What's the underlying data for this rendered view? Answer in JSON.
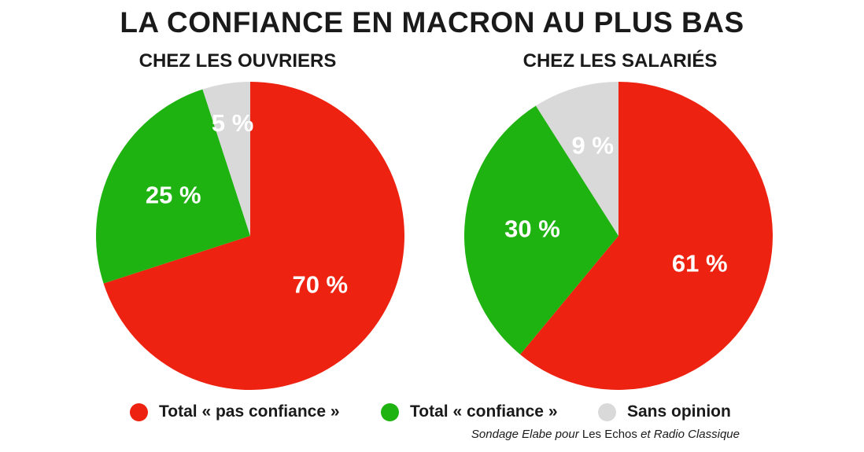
{
  "title": "LA CONFIANCE EN MACRON AU PLUS BAS",
  "source": {
    "part1": "Sondage Elabe pour",
    "part2": " Les Echos ",
    "part3": "et",
    "part4": " Radio Classique"
  },
  "colors": {
    "pas_confiance": "#ee2211",
    "confiance": "#1fb312",
    "sans_opinion": "#d9d9d9"
  },
  "legend": [
    {
      "label": "Total « pas confiance »",
      "color": "#ee2211"
    },
    {
      "label": "Total « confiance »",
      "color": "#1fb312"
    },
    {
      "label": "Sans opinion",
      "color": "#d9d9d9"
    }
  ],
  "chart_data": [
    {
      "type": "pie",
      "title": "CHEZ LES OUVRIERS",
      "categories": [
        "Total « pas confiance »",
        "Total « confiance »",
        "Sans opinion"
      ],
      "values": [
        70,
        25,
        5
      ],
      "labels": [
        "70 %",
        "25 %",
        "5 %"
      ],
      "colors": [
        "#ee2211",
        "#1fb312",
        "#d9d9d9"
      ]
    },
    {
      "type": "pie",
      "title": "CHEZ LES SALARIÉS",
      "categories": [
        "Total « pas confiance »",
        "Total « confiance »",
        "Sans opinion"
      ],
      "values": [
        61,
        30,
        9
      ],
      "labels": [
        "61 %",
        "30 %",
        "9 %"
      ],
      "colors": [
        "#ee2211",
        "#1fb312",
        "#d9d9d9"
      ]
    }
  ]
}
